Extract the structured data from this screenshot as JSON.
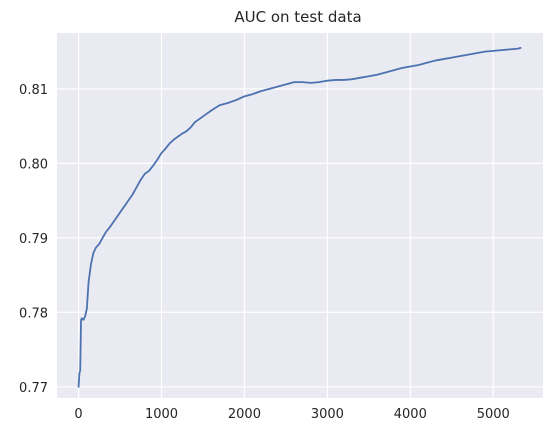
{
  "chart_data": {
    "type": "line",
    "title": "AUC on test data",
    "xlabel": "",
    "ylabel": "",
    "xlim": [
      -260,
      5600
    ],
    "ylim": [
      0.7685,
      0.8175
    ],
    "xticks": [
      0,
      1000,
      2000,
      3000,
      4000,
      5000
    ],
    "xtick_labels": [
      "0",
      "1000",
      "2000",
      "3000",
      "4000",
      "5000"
    ],
    "yticks": [
      0.77,
      0.78,
      0.79,
      0.8,
      0.81
    ],
    "ytick_labels": [
      "0.77",
      "0.78",
      "0.79",
      "0.80",
      "0.81"
    ],
    "grid": true,
    "background_color": "#eaeaf2",
    "grid_color": "#ffffff",
    "line_color": "#4c72b0",
    "series": [
      {
        "x": [
          0,
          10,
          20,
          30,
          40,
          60,
          80,
          100,
          120,
          150,
          180,
          210,
          250,
          300,
          330,
          360,
          400,
          450,
          500,
          550,
          600,
          650,
          700,
          750,
          800,
          850,
          900,
          950,
          1000,
          1050,
          1100,
          1150,
          1200,
          1250,
          1300,
          1350,
          1400,
          1500,
          1600,
          1700,
          1800,
          1900,
          2000,
          2100,
          2200,
          2300,
          2400,
          2500,
          2600,
          2700,
          2800,
          2900,
          3000,
          3100,
          3200,
          3300,
          3400,
          3500,
          3600,
          3700,
          3800,
          3900,
          4000,
          4100,
          4200,
          4300,
          4400,
          4500,
          4600,
          4700,
          4800,
          4900,
          5000,
          5100,
          5200,
          5300,
          5330
        ],
        "y": [
          0.77,
          0.7718,
          0.7722,
          0.779,
          0.7792,
          0.779,
          0.7795,
          0.7805,
          0.784,
          0.7865,
          0.788,
          0.7887,
          0.7892,
          0.7902,
          0.7908,
          0.7912,
          0.7918,
          0.7926,
          0.7934,
          0.7942,
          0.795,
          0.7958,
          0.7968,
          0.7978,
          0.7986,
          0.799,
          0.7997,
          0.8005,
          0.8014,
          0.802,
          0.8027,
          0.8032,
          0.8036,
          0.804,
          0.8043,
          0.8048,
          0.8055,
          0.8063,
          0.8071,
          0.8078,
          0.8081,
          0.8085,
          0.809,
          0.8093,
          0.8097,
          0.81,
          0.8103,
          0.8106,
          0.8109,
          0.8109,
          0.8108,
          0.8109,
          0.8111,
          0.8112,
          0.8112,
          0.8113,
          0.8115,
          0.8117,
          0.8119,
          0.8122,
          0.8125,
          0.8128,
          0.813,
          0.8132,
          0.8135,
          0.8138,
          0.814,
          0.8142,
          0.8144,
          0.8146,
          0.8148,
          0.815,
          0.8151,
          0.8152,
          0.8153,
          0.8154,
          0.8155
        ]
      }
    ]
  }
}
